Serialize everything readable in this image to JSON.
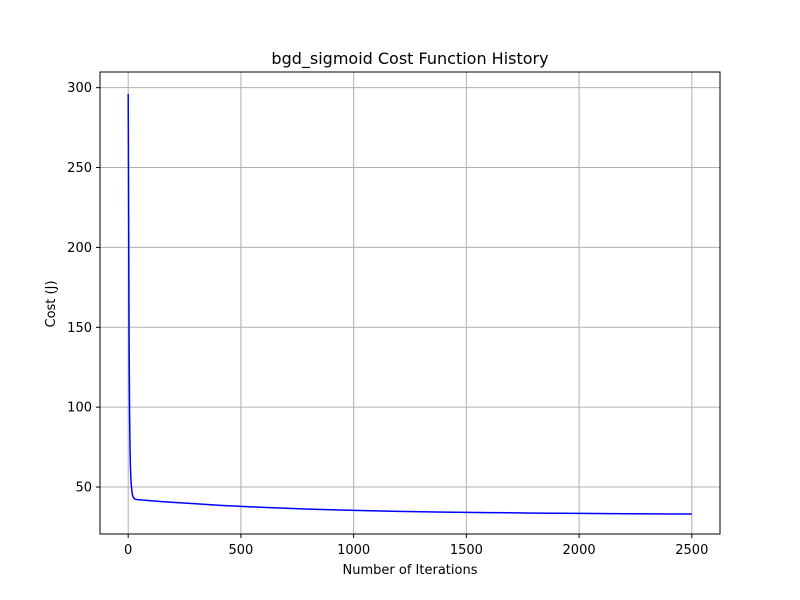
{
  "chart_data": {
    "type": "line",
    "title": "bgd_sigmoid Cost Function History",
    "xlabel": "Number of Iterations",
    "ylabel": "Cost (J)",
    "xlim": [
      -125,
      2625
    ],
    "ylim": [
      20.6,
      309.8
    ],
    "xticks": [
      0,
      500,
      1000,
      1500,
      2000,
      2500
    ],
    "yticks": [
      50,
      100,
      150,
      200,
      250,
      300
    ],
    "grid": true,
    "colors": {
      "line": "#0000ff",
      "grid": "#b0b0b0",
      "axes": "#000000"
    },
    "series": [
      {
        "x": [
          0,
          1,
          2,
          3,
          4,
          5,
          6,
          7,
          8,
          10,
          12,
          14,
          16,
          18,
          20,
          23,
          26,
          30,
          35,
          40,
          50,
          75,
          100,
          150,
          200,
          300,
          400,
          500,
          600,
          700,
          800,
          900,
          1000,
          1200,
          1400,
          1600,
          1800,
          2000,
          2200,
          2400,
          2500
        ],
        "y": [
          296,
          262,
          220,
          180,
          145,
          120,
          100,
          86,
          75,
          62,
          55,
          51,
          48,
          46,
          44.5,
          43.5,
          43,
          42.5,
          42.3,
          42.1,
          42.0,
          41.7,
          41.4,
          40.9,
          40.4,
          39.5,
          38.6,
          37.9,
          37.3,
          36.7,
          36.2,
          35.8,
          35.4,
          34.8,
          34.3,
          34.0,
          33.7,
          33.5,
          33.3,
          33.15,
          33.1
        ]
      }
    ]
  }
}
